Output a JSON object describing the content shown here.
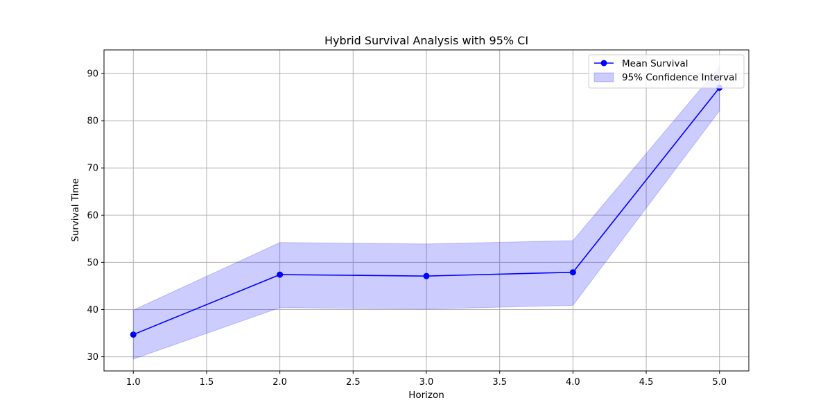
{
  "chart_data": {
    "type": "line",
    "title": "Hybrid Survival Analysis with 95% CI",
    "xlabel": "Horizon",
    "ylabel": "Survival Time",
    "x": [
      1.0,
      2.0,
      3.0,
      4.0,
      5.0
    ],
    "xlim": [
      0.8,
      5.2
    ],
    "ylim": [
      27,
      95
    ],
    "xticks": [
      "1.0",
      "1.5",
      "2.0",
      "2.5",
      "3.0",
      "3.5",
      "4.0",
      "4.5",
      "5.0"
    ],
    "yticks": [
      "30",
      "40",
      "50",
      "60",
      "70",
      "80",
      "90"
    ],
    "grid": true,
    "legend_position": "top-right",
    "series": [
      {
        "name": "Mean Survival",
        "kind": "line-marker",
        "color": "#0000ff",
        "values": [
          34.7,
          47.4,
          47.1,
          47.9,
          87.0
        ]
      },
      {
        "name": "95% Confidence Interval",
        "kind": "band",
        "color": "#0000ff",
        "lower": [
          29.5,
          40.4,
          40.1,
          40.9,
          82.1
        ],
        "upper": [
          39.9,
          54.2,
          53.9,
          54.6,
          91.5
        ]
      }
    ]
  }
}
